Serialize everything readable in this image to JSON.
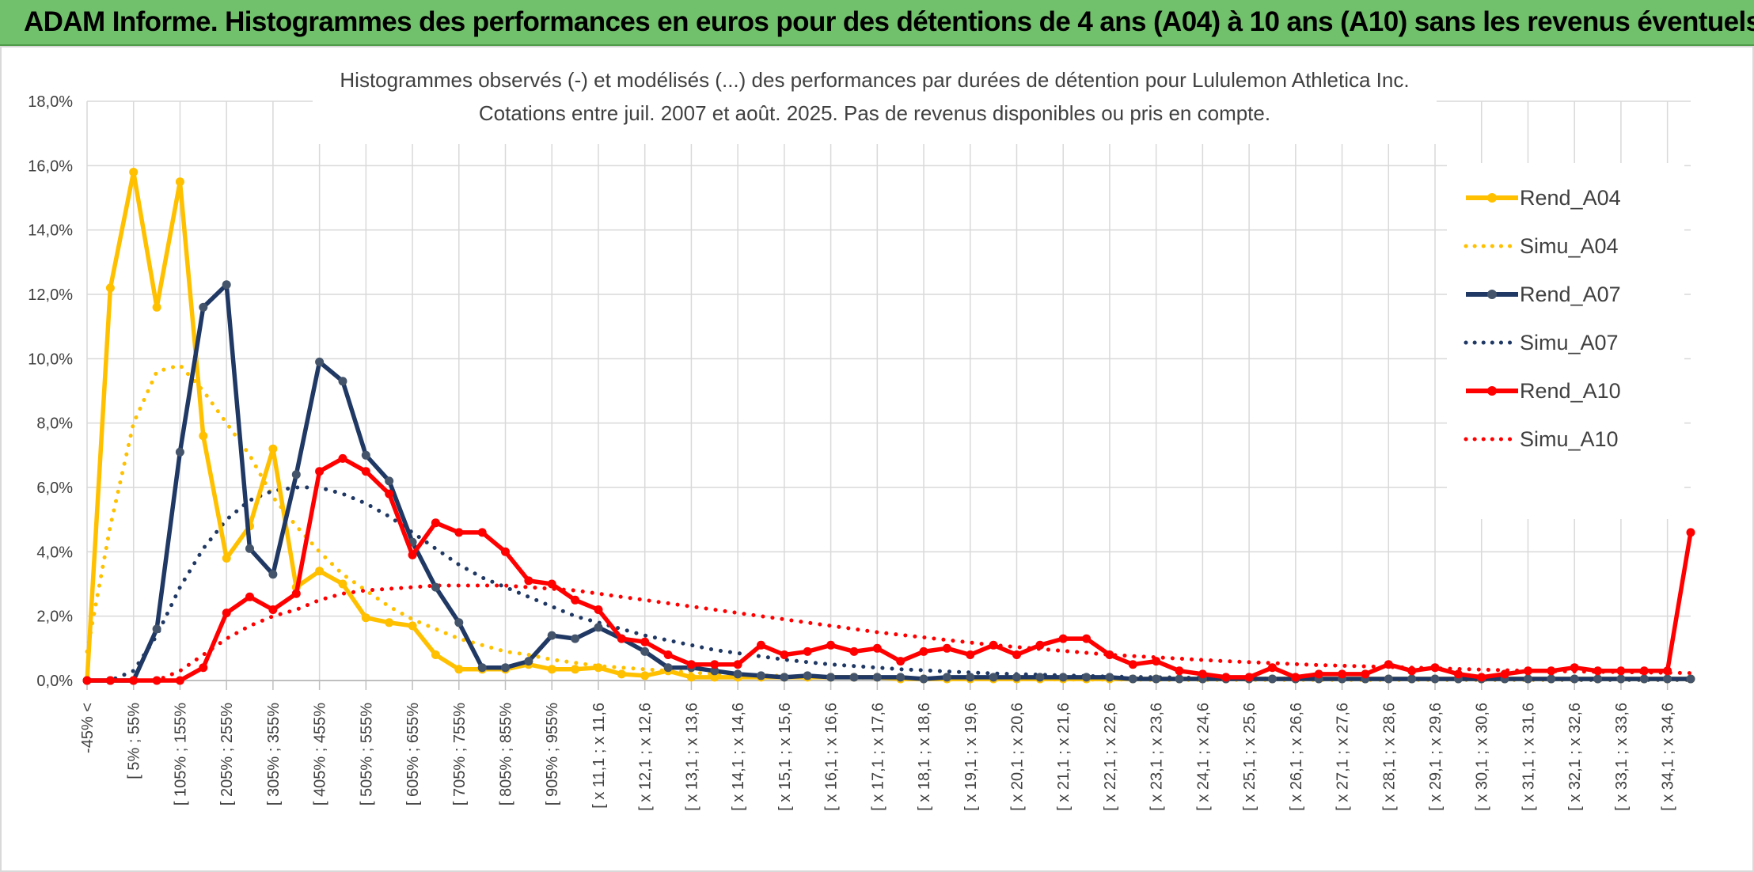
{
  "header": {
    "title": "ADAM Informe. Histogrammes des performances en euros pour des détentions de 4 ans (A04) à 10 ans (A10) sans les revenus éventuels"
  },
  "chart_data": {
    "type": "line",
    "title": "Histogrammes observés (-) et modélisés (...) des performances par durées de détention pour Lululemon Athletica Inc.",
    "subtitle": "Cotations entre juil. 2007 et août. 2025. Pas de revenus disponibles ou pris en compte.",
    "ylim": [
      0,
      18
    ],
    "yticks": [
      "0,0%",
      "2,0%",
      "4,0%",
      "6,0%",
      "8,0%",
      "10,0%",
      "12,0%",
      "14,0%",
      "16,0%",
      "18,0%"
    ],
    "x_labels": [
      "-45% <",
      "[ 5% ; 55%",
      "[ 105% ; 155%",
      "[ 205% ; 255%",
      "[ 305% ; 355%",
      "[ 405% ; 455%",
      "[ 505% ; 555%",
      "[ 605% ; 655%",
      "[ 705% ; 755%",
      "[ 805% ; 855%",
      "[ 905% ; 955%",
      "[ x 11,1 ; x 11,6",
      "[ x 12,1 ; x 12,6",
      "[ x 13,1 ; x 13,6",
      "[ x 14,1 ; x 14,6",
      "[ x 15,1 ; x 15,6",
      "[ x 16,1 ; x 16,6",
      "[ x 17,1 ; x 17,6",
      "[ x 18,1 ; x 18,6",
      "[ x 19,1 ; x 19,6",
      "[ x 20,1 ; x 20,6",
      "[ x 21,1 ; x 21,6",
      "[ x 22,1 ; x 22,6",
      "[ x 23,1 ; x 23,6",
      "[ x 24,1 ; x 24,6",
      "[ x 25,1 ; x 25,6",
      "[ x 26,1 ; x 26,6",
      "[ x 27,1 ; x 27,6",
      "[ x 28,1 ; x 28,6",
      "[ x 29,1 ; x 29,6",
      "[ x 30,1 ; x 30,6",
      "[ x 31,1 ; x 31,6",
      "[ x 32,1 ; x 32,6",
      "[ x 33,1 ; x 33,6",
      "[ x 34,1 ; x 34,6"
    ],
    "legend_position": "right",
    "grid": true,
    "colors": {
      "A04": "#ffc000",
      "A07": "#1f3864",
      "A10": "#ff0000"
    },
    "series": [
      {
        "name": "Rend_A04",
        "style": "solid-markers",
        "color": "#ffc000",
        "values": [
          0,
          12.2,
          15.8,
          11.6,
          15.5,
          7.6,
          3.8,
          4.8,
          7.2,
          2.9,
          3.4,
          3.0,
          1.95,
          1.8,
          1.7,
          0.8,
          0.35,
          0.35,
          0.35,
          0.5,
          0.35,
          0.35,
          0.4,
          0.2,
          0.15,
          0.3,
          0.1,
          0.1,
          0.1,
          0.1,
          0.1,
          0.1,
          0.1,
          0.1,
          0.1,
          0.05,
          0.05,
          0.05,
          0.05,
          0.05,
          0.05,
          0.05,
          0.05,
          0.05,
          0.05,
          0.05,
          0.05,
          0.05,
          0.05,
          0.05,
          0.05,
          0.05,
          0.05,
          0.05,
          0.05,
          0.05,
          0.05,
          0.05,
          0.05,
          0.05,
          0.05,
          0.05,
          0.05,
          0.05,
          0.05,
          0.05,
          0.05,
          0.05,
          0.05,
          0.05
        ]
      },
      {
        "name": "Simu_A04",
        "style": "dotted",
        "color": "#ffc000",
        "values": [
          0.9,
          4.8,
          8.0,
          9.6,
          9.8,
          9.0,
          8.0,
          7.0,
          5.7,
          4.8,
          4.0,
          3.3,
          2.8,
          2.3,
          1.9,
          1.6,
          1.3,
          1.1,
          0.9,
          0.8,
          0.65,
          0.55,
          0.45,
          0.4,
          0.35,
          0.3,
          0.25,
          0.2,
          0.18,
          0.16,
          0.14,
          0.12,
          0.1,
          0.1,
          0.08,
          0.07,
          0.06,
          0.05,
          0.05,
          0.05,
          0.04,
          0.04,
          0.03,
          0.03,
          0.03,
          0.03,
          0.02,
          0.02,
          0.02,
          0.02,
          0.02,
          0.02,
          0.02,
          0.02,
          0.02,
          0.02,
          0.02,
          0.02,
          0.02,
          0.02,
          0.02,
          0.02,
          0.02,
          0.02,
          0.02,
          0.02,
          0.02,
          0.02,
          0.02,
          0.02
        ]
      },
      {
        "name": "Rend_A07",
        "style": "solid-markers",
        "color": "#1f3864",
        "values": [
          0,
          0,
          0,
          1.6,
          7.1,
          11.6,
          12.3,
          4.1,
          3.3,
          6.4,
          9.9,
          9.3,
          7.0,
          6.2,
          4.3,
          2.9,
          1.8,
          0.4,
          0.4,
          0.6,
          1.4,
          1.3,
          1.65,
          1.3,
          0.9,
          0.4,
          0.4,
          0.3,
          0.2,
          0.15,
          0.1,
          0.15,
          0.1,
          0.1,
          0.1,
          0.1,
          0.05,
          0.1,
          0.1,
          0.1,
          0.1,
          0.1,
          0.1,
          0.1,
          0.1,
          0.05,
          0.05,
          0.05,
          0.05,
          0.05,
          0.05,
          0.05,
          0.05,
          0.05,
          0.05,
          0.05,
          0.05,
          0.05,
          0.05,
          0.05,
          0.05,
          0.05,
          0.05,
          0.05,
          0.05,
          0.05,
          0.05,
          0.05,
          0.05,
          0.05
        ]
      },
      {
        "name": "Simu_A07",
        "style": "dotted",
        "color": "#1f3864",
        "values": [
          0,
          0,
          0.3,
          1.4,
          2.9,
          4.1,
          5.0,
          5.6,
          5.9,
          6.0,
          6.0,
          5.8,
          5.5,
          5.1,
          4.6,
          4.1,
          3.6,
          3.2,
          2.9,
          2.6,
          2.3,
          2.0,
          1.8,
          1.6,
          1.4,
          1.25,
          1.1,
          0.95,
          0.85,
          0.75,
          0.65,
          0.57,
          0.5,
          0.45,
          0.4,
          0.35,
          0.32,
          0.28,
          0.25,
          0.22,
          0.2,
          0.18,
          0.16,
          0.14,
          0.12,
          0.11,
          0.1,
          0.09,
          0.08,
          0.07,
          0.06,
          0.06,
          0.05,
          0.05,
          0.05,
          0.04,
          0.04,
          0.04,
          0.03,
          0.03,
          0.03,
          0.03,
          0.03,
          0.03,
          0.02,
          0.02,
          0.02,
          0.02,
          0.02,
          0.02
        ]
      },
      {
        "name": "Rend_A10",
        "style": "solid-markers",
        "color": "#ff0000",
        "values": [
          0,
          0,
          0,
          0,
          0,
          0.4,
          2.1,
          2.6,
          2.2,
          2.7,
          6.5,
          6.9,
          6.5,
          5.8,
          3.9,
          4.9,
          4.6,
          4.6,
          4.0,
          3.1,
          3.0,
          2.5,
          2.2,
          1.3,
          1.2,
          0.8,
          0.5,
          0.5,
          0.5,
          1.1,
          0.8,
          0.9,
          1.1,
          0.9,
          1.0,
          0.6,
          0.9,
          1.0,
          0.8,
          1.1,
          0.8,
          1.1,
          1.3,
          1.3,
          0.8,
          0.5,
          0.6,
          0.3,
          0.2,
          0.1,
          0.1,
          0.4,
          0.1,
          0.2,
          0.2,
          0.2,
          0.5,
          0.3,
          0.4,
          0.2,
          0.1,
          0.2,
          0.3,
          0.3,
          0.4,
          0.3,
          0.3,
          0.3,
          0.3,
          4.6
        ]
      },
      {
        "name": "Simu_A10",
        "style": "dotted",
        "color": "#ff0000",
        "values": [
          0,
          0,
          0,
          0,
          0.3,
          0.8,
          1.3,
          1.7,
          2.0,
          2.2,
          2.5,
          2.7,
          2.8,
          2.85,
          2.9,
          2.95,
          2.95,
          2.95,
          2.95,
          2.9,
          2.85,
          2.8,
          2.7,
          2.6,
          2.5,
          2.4,
          2.3,
          2.2,
          2.1,
          2.0,
          1.9,
          1.8,
          1.7,
          1.6,
          1.5,
          1.42,
          1.34,
          1.26,
          1.18,
          1.1,
          1.04,
          0.98,
          0.92,
          0.86,
          0.8,
          0.76,
          0.72,
          0.68,
          0.64,
          0.6,
          0.57,
          0.54,
          0.51,
          0.48,
          0.46,
          0.44,
          0.42,
          0.4,
          0.38,
          0.36,
          0.34,
          0.32,
          0.3,
          0.29,
          0.28,
          0.27,
          0.26,
          0.25,
          0.24,
          0.23
        ]
      }
    ]
  }
}
